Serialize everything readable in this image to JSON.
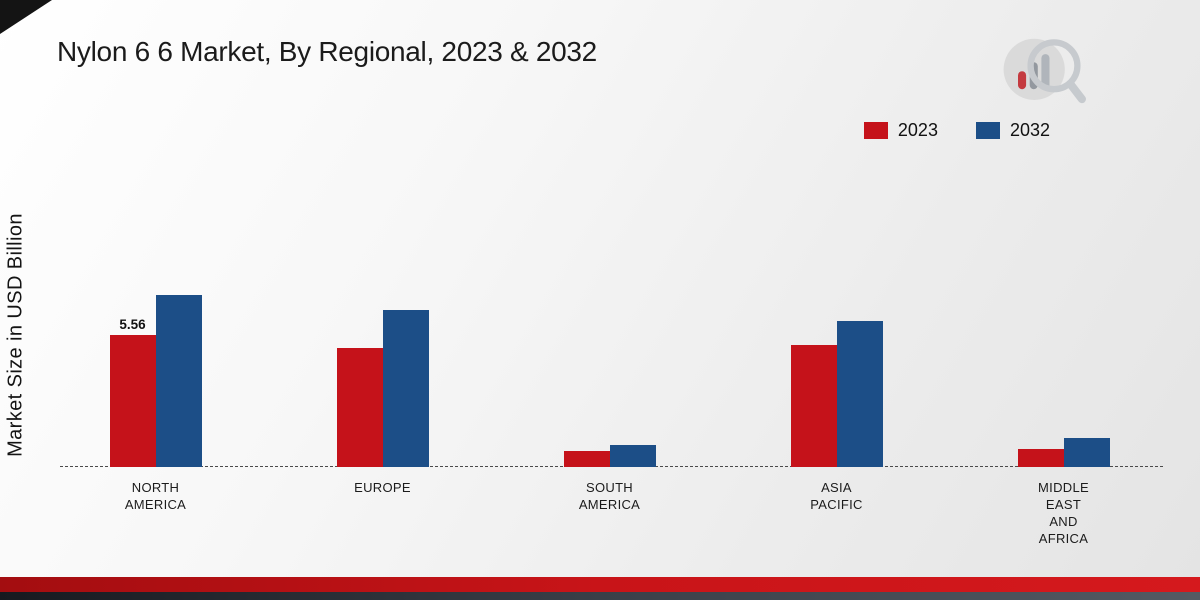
{
  "title": "Nylon 6 6 Market, By Regional, 2023 & 2032",
  "ylabel": "Market Size in USD Billion",
  "chart_data": {
    "type": "bar",
    "title": "Nylon 6 6 Market, By Regional, 2023 & 2032",
    "xlabel": "",
    "ylabel": "Market Size in USD Billion",
    "ylim": [
      0,
      8.5
    ],
    "grid": false,
    "legend_position": "top-right",
    "baseline_style": "dashed",
    "categories": [
      "NORTH AMERICA",
      "EUROPE",
      "SOUTH AMERICA",
      "ASIA PACIFIC",
      "MIDDLE EAST AND AFRICA"
    ],
    "categories_lines": [
      [
        "NORTH",
        "AMERICA"
      ],
      [
        "EUROPE"
      ],
      [
        "SOUTH",
        "AMERICA"
      ],
      [
        "ASIA",
        "PACIFIC"
      ],
      [
        "MIDDLE",
        "EAST",
        "AND",
        "AFRICA"
      ]
    ],
    "series": [
      {
        "name": "2023",
        "color": "#c5121a",
        "values": [
          5.56,
          5.02,
          0.67,
          5.15,
          0.76
        ]
      },
      {
        "name": "2032",
        "color": "#1c4e87",
        "values": [
          7.25,
          6.62,
          0.93,
          6.15,
          1.22
        ]
      }
    ],
    "annotations": [
      {
        "cat": 0,
        "series": 0,
        "text": "5.56"
      }
    ]
  },
  "footer": {
    "red_stripe_color": "#c81418",
    "dark_stripe_color": "#2a2e36"
  },
  "logo": {
    "name": "market-research-logo",
    "bar_red": "#c0272d",
    "bar_gray": "#9aa0a6",
    "ring_gray": "#c3c7cb"
  }
}
